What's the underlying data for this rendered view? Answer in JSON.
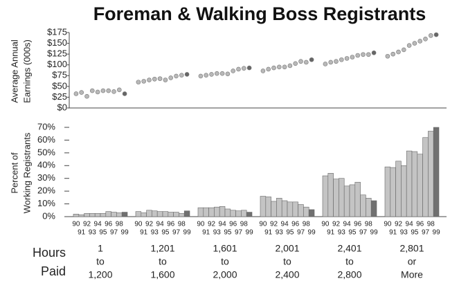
{
  "chart_data": [
    {
      "type": "scatter",
      "title": "Foreman & Walking Boss Registrants",
      "ylabel": [
        "Average Annual",
        "Earnings (000s)"
      ],
      "ylim": [
        0,
        175
      ],
      "yticks": [
        {
          "value": 0,
          "label": "$0"
        },
        {
          "value": 25,
          "label": "$25"
        },
        {
          "value": 50,
          "label": "$50"
        },
        {
          "value": 75,
          "label": "$75"
        },
        {
          "value": 100,
          "label": "$100"
        },
        {
          "value": 125,
          "label": "$125"
        },
        {
          "value": 150,
          "label": "$150"
        },
        {
          "value": 175,
          "label": "$175"
        }
      ],
      "color": "#b8b8b8",
      "last_color": "#666666",
      "values": [
        [
          33,
          36,
          27,
          40,
          37,
          40,
          40,
          38,
          42,
          33
        ],
        [
          60,
          62,
          65,
          67,
          68,
          65,
          70,
          74,
          76,
          78
        ],
        [
          74,
          76,
          78,
          80,
          80,
          79,
          86,
          90,
          92,
          93
        ],
        [
          86,
          90,
          93,
          95,
          95,
          98,
          103,
          108,
          106,
          112
        ],
        [
          102,
          106,
          108,
          112,
          115,
          118,
          122,
          124,
          124,
          128
        ],
        [
          120,
          125,
          130,
          135,
          145,
          150,
          155,
          160,
          168,
          170
        ]
      ]
    },
    {
      "type": "bar",
      "ylabel": [
        "Percent of",
        "Working Registrants"
      ],
      "ylim": [
        0,
        70
      ],
      "yticks": [
        {
          "value": 0,
          "label": "0%"
        },
        {
          "value": 10,
          "label": "10%"
        },
        {
          "value": 20,
          "label": "20%"
        },
        {
          "value": 30,
          "label": "30%"
        },
        {
          "value": 40,
          "label": "40%"
        },
        {
          "value": 50,
          "label": "50%"
        },
        {
          "value": 60,
          "label": "60%"
        },
        {
          "value": 70,
          "label": "70%"
        }
      ],
      "color": "#c4c4c4",
      "last_color": "#707070",
      "years": [
        "90",
        "91",
        "92",
        "93",
        "94",
        "95",
        "96",
        "97",
        "98",
        "99"
      ],
      "xlabel": [
        "Hours",
        "Paid"
      ],
      "groups": [
        [
          "1",
          "to",
          "1,200"
        ],
        [
          "1,201",
          "to",
          "1,600"
        ],
        [
          "1,601",
          "to",
          "2,000"
        ],
        [
          "2,001",
          "to",
          "2,400"
        ],
        [
          "2,401",
          "to",
          "2,800"
        ],
        [
          "2,801",
          "or",
          "More"
        ]
      ],
      "values": [
        [
          2,
          1.5,
          2.5,
          2.5,
          2.5,
          2.5,
          4,
          3.5,
          3,
          3.5
        ],
        [
          4,
          3,
          5,
          4.5,
          4,
          4,
          3.5,
          3.5,
          2.5,
          4.5
        ],
        [
          7,
          7,
          7,
          7.5,
          8,
          6,
          5,
          4.5,
          5,
          3.5
        ],
        [
          16,
          15.5,
          12,
          14.5,
          12.5,
          11.5,
          11.5,
          9.5,
          7.5,
          5.5
        ],
        [
          32,
          34,
          29.5,
          30,
          24,
          25,
          27,
          17,
          14.5,
          12.5
        ],
        [
          39,
          38.5,
          43.5,
          40,
          51.5,
          51,
          49,
          62,
          67,
          70
        ]
      ]
    }
  ]
}
